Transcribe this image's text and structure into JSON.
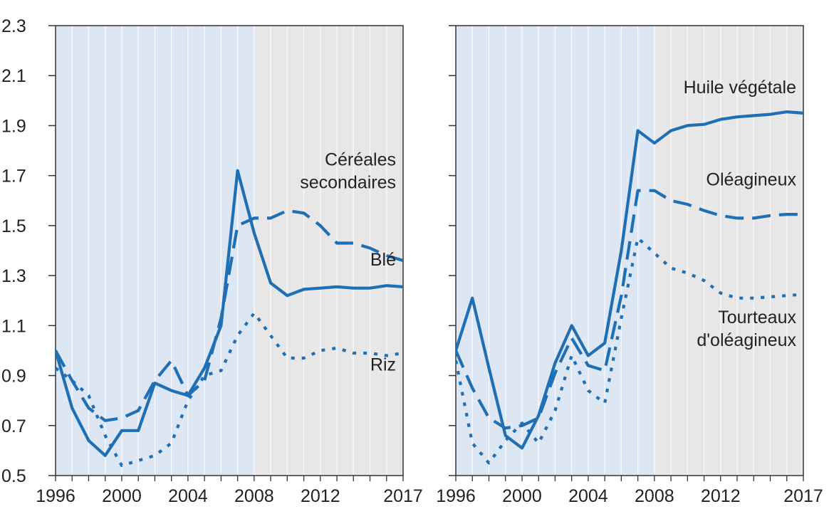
{
  "colors": {
    "line": "#1f6fb5",
    "history_bg": "#dde6f3",
    "projection_bg": "#e7e7e7",
    "axis": "#333333"
  },
  "chart_data": [
    {
      "type": "line",
      "panel": "left",
      "ylim": [
        0.5,
        2.3
      ],
      "xlim": [
        1996,
        2017
      ],
      "yticks": [
        "0.5",
        "0.7",
        "0.9",
        "1.1",
        "1.3",
        "1.5",
        "1.7",
        "1.9",
        "2.1",
        "2.3"
      ],
      "xticks": [
        "1996",
        "2000",
        "2004",
        "2008",
        "2012",
        "2017"
      ],
      "projection_start": 2008,
      "x": [
        1996,
        1997,
        1998,
        1999,
        2000,
        2001,
        2002,
        2003,
        2004,
        2005,
        2006,
        2007,
        2008,
        2009,
        2010,
        2011,
        2012,
        2013,
        2014,
        2015,
        2016,
        2017
      ],
      "series": [
        {
          "name": "Blé",
          "style": "solid",
          "values": [
            1.0,
            0.77,
            0.64,
            0.58,
            0.68,
            0.68,
            0.87,
            0.84,
            0.82,
            0.93,
            1.1,
            1.72,
            1.47,
            1.27,
            1.22,
            1.245,
            1.25,
            1.255,
            1.25,
            1.25,
            1.26,
            1.255
          ]
        },
        {
          "name": "Céréales secondaires",
          "style": "dashed",
          "values": [
            1.0,
            0.88,
            0.77,
            0.72,
            0.73,
            0.76,
            0.88,
            0.96,
            0.82,
            0.88,
            1.13,
            1.5,
            1.53,
            1.53,
            1.56,
            1.55,
            1.5,
            1.43,
            1.43,
            1.41,
            1.38,
            1.36
          ]
        },
        {
          "name": "Riz",
          "style": "dotted",
          "values": [
            0.93,
            0.88,
            0.82,
            0.66,
            0.54,
            0.56,
            0.58,
            0.63,
            0.8,
            0.9,
            0.92,
            1.06,
            1.15,
            1.06,
            0.97,
            0.97,
            1.0,
            1.01,
            0.99,
            0.99,
            0.98,
            0.99
          ]
        }
      ],
      "annotations": [
        {
          "lines": [
            "Céréales",
            "secondaires"
          ],
          "x": 2017,
          "y": 1.74
        },
        {
          "lines": [
            "Blé"
          ],
          "x": 2017,
          "y": 1.34
        },
        {
          "lines": [
            "Riz"
          ],
          "x": 2017,
          "y": 0.92
        }
      ]
    },
    {
      "type": "line",
      "panel": "right",
      "ylim": [
        0.5,
        2.3
      ],
      "xlim": [
        1996,
        2017
      ],
      "xticks": [
        "1996",
        "2000",
        "2004",
        "2008",
        "2012",
        "2017"
      ],
      "projection_start": 2008,
      "x": [
        1996,
        1997,
        1998,
        1999,
        2000,
        2001,
        2002,
        2003,
        2004,
        2005,
        2006,
        2007,
        2008,
        2009,
        2010,
        2011,
        2012,
        2013,
        2014,
        2015,
        2016,
        2017
      ],
      "series": [
        {
          "name": "Huile végétale",
          "style": "solid",
          "values": [
            1.0,
            1.21,
            0.93,
            0.66,
            0.61,
            0.74,
            0.95,
            1.1,
            0.98,
            1.03,
            1.4,
            1.88,
            1.83,
            1.88,
            1.9,
            1.905,
            1.925,
            1.935,
            1.94,
            1.945,
            1.955,
            1.95
          ]
        },
        {
          "name": "Oléagineux",
          "style": "dashed",
          "values": [
            1.0,
            0.85,
            0.73,
            0.69,
            0.7,
            0.73,
            0.91,
            1.05,
            0.94,
            0.92,
            1.22,
            1.64,
            1.64,
            1.6,
            1.585,
            1.56,
            1.54,
            1.53,
            1.53,
            1.54,
            1.545,
            1.545
          ]
        },
        {
          "name": "Tourteaux d'oléagineux",
          "style": "dotted",
          "values": [
            0.96,
            0.63,
            0.55,
            0.64,
            0.71,
            0.63,
            0.76,
            0.98,
            0.84,
            0.79,
            1.13,
            1.45,
            1.39,
            1.33,
            1.31,
            1.28,
            1.23,
            1.21,
            1.21,
            1.215,
            1.22,
            1.225
          ]
        }
      ],
      "annotations": [
        {
          "lines": [
            "Huile végétale"
          ],
          "x": 2017,
          "y": 2.03
        },
        {
          "lines": [
            "Oléagineux"
          ],
          "x": 2017,
          "y": 1.66
        },
        {
          "lines": [
            "Tourteaux",
            "d'oléagineux"
          ],
          "x": 2017,
          "y": 1.11
        }
      ]
    }
  ]
}
